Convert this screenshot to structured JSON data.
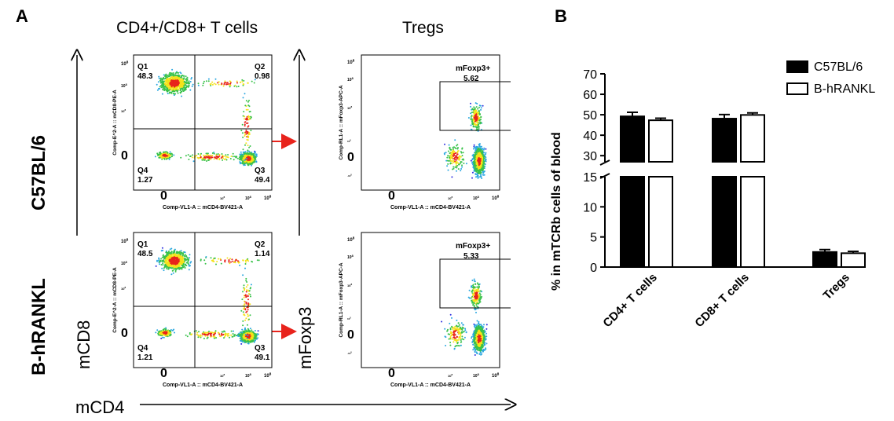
{
  "panel_a": {
    "letter": "A",
    "col_headers": [
      "CD4+/CD8+ T cells",
      "Tregs"
    ],
    "row_labels": [
      "C57BL/6",
      "B-hRANKL"
    ],
    "big_axis_y_left": "mCD8",
    "big_axis_y_right": "mFoxp3",
    "big_axis_x": "mCD4",
    "x_axis_label": "Comp-VL1-A :: mCD4-BV421-A",
    "y_axis_label_cd8": "Comp-E^2-A :: mCD8-PE-A",
    "y_axis_label_foxp3": "Comp-RL1-A :: mFoxp3-APC-A",
    "x_ticks": [
      "0",
      "10",
      "10",
      "10"
    ],
    "x_tick_exps": [
      "",
      "4",
      "5",
      "6"
    ],
    "y_ticks_cd8": [
      "10",
      "10",
      "10",
      "0"
    ],
    "y_tick_exps_cd8": [
      "6",
      "5",
      "4",
      ""
    ],
    "y_ticks_foxp3": [
      "10",
      "10",
      "10",
      "10",
      "0",
      "-10"
    ],
    "y_tick_exps_foxp3": [
      "6",
      "5",
      "4",
      "3",
      "",
      "3"
    ],
    "plots": [
      {
        "quadrants": [
          {
            "name": "Q1",
            "value": "48.3"
          },
          {
            "name": "Q2",
            "value": "0.98"
          },
          {
            "name": "Q3",
            "value": "49.4"
          },
          {
            "name": "Q4",
            "value": "1.27"
          }
        ]
      },
      {
        "gate": {
          "name": "mFoxp3+",
          "value": "5.62"
        }
      },
      {
        "quadrants": [
          {
            "name": "Q1",
            "value": "48.5"
          },
          {
            "name": "Q2",
            "value": "1.14"
          },
          {
            "name": "Q3",
            "value": "49.1"
          },
          {
            "name": "Q4",
            "value": "1.21"
          }
        ]
      },
      {
        "gate": {
          "name": "mFoxp3+",
          "value": "5.33"
        }
      }
    ]
  },
  "panel_b": {
    "letter": "B"
  },
  "chart_data": {
    "type": "bar",
    "categories": [
      "CD4+ T cells",
      "CD8+ T cells",
      "Tregs"
    ],
    "series": [
      {
        "name": "C57BL/6",
        "values": [
          49.2,
          48.1,
          2.5
        ],
        "errors": [
          2.0,
          2.0,
          0.4
        ],
        "color": "#000000"
      },
      {
        "name": "B-hRANKL",
        "values": [
          47.3,
          49.9,
          2.3
        ],
        "errors": [
          1.0,
          1.0,
          0.3
        ],
        "color": "#ffffff"
      }
    ],
    "ylabel": "% in mTCRb cells of blood",
    "y_segments": [
      [
        0,
        15
      ],
      [
        27,
        70
      ]
    ],
    "y_ticks_lower": [
      "0",
      "5",
      "10",
      "15"
    ],
    "y_ticks_upper": [
      "30",
      "40",
      "50",
      "60",
      "70"
    ],
    "legend_position": "top-right",
    "error_bars": true
  }
}
